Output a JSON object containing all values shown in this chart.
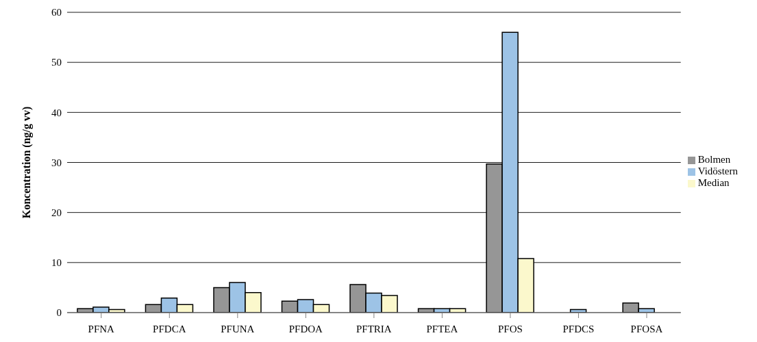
{
  "chart_data": {
    "type": "bar",
    "ylabel": "Koncentration (ng/g vv)",
    "categories": [
      "PFNA",
      "PFDCA",
      "PFUNA",
      "PFDOA",
      "PFTRIA",
      "PFTEA",
      "PFOS",
      "PFDCS",
      "PFOSA"
    ],
    "series": [
      {
        "name": "Bolmen",
        "color": "#969696",
        "values": [
          0.8,
          1.6,
          5.0,
          2.3,
          5.6,
          0.8,
          29.7,
          null,
          1.9
        ]
      },
      {
        "name": "Vidöstern",
        "color": "#9dc3e6",
        "values": [
          1.1,
          2.9,
          6.0,
          2.6,
          3.9,
          0.8,
          56,
          0.6,
          0.8
        ]
      },
      {
        "name": "Median",
        "color": "#fbf8cc",
        "values": [
          0.6,
          1.6,
          4.0,
          1.6,
          3.4,
          0.8,
          10.8,
          null,
          null
        ]
      }
    ],
    "ylim": [
      0,
      60
    ],
    "yticks": [
      0,
      10,
      20,
      30,
      40,
      50,
      60
    ],
    "grid": "y",
    "legend": "right"
  }
}
